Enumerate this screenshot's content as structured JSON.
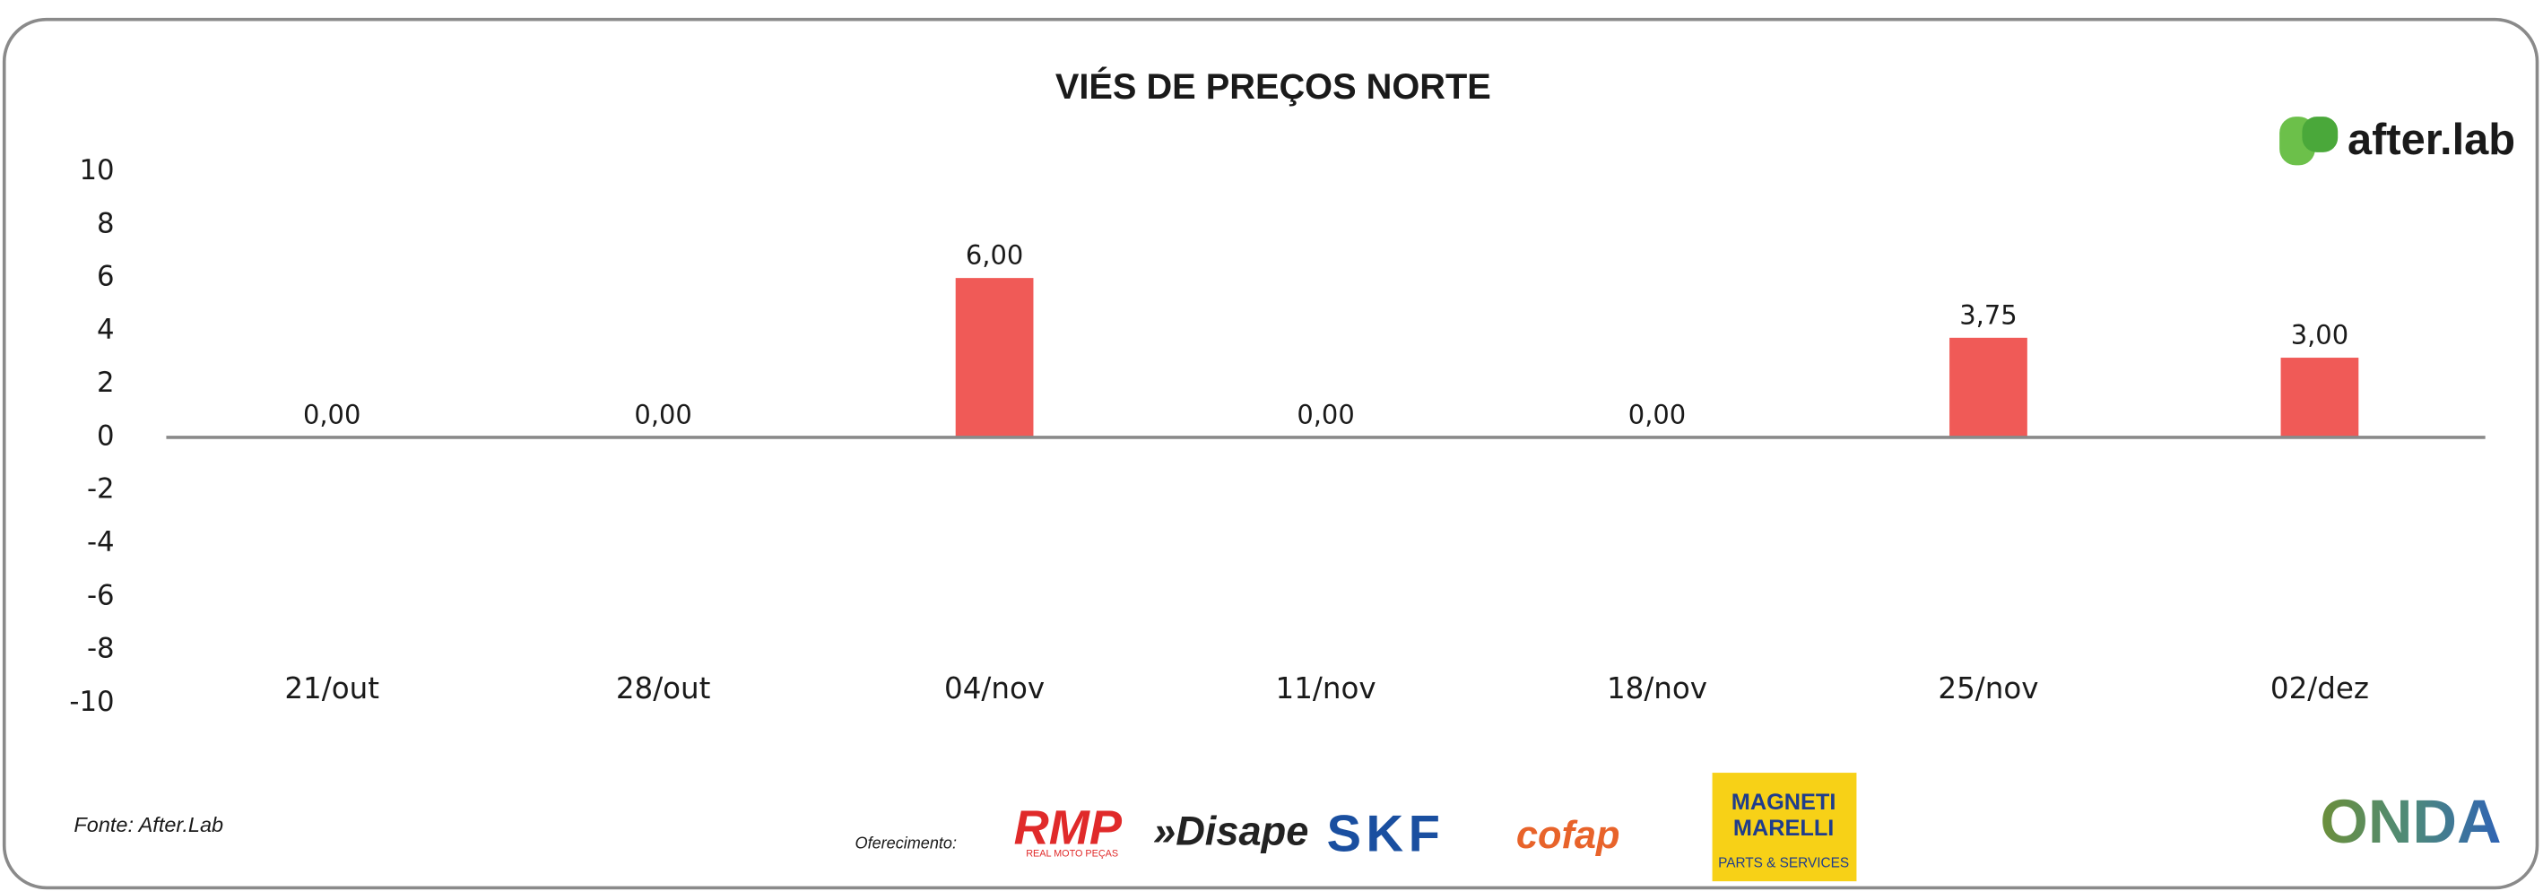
{
  "chart_data": {
    "type": "bar",
    "title": "VIÉS DE PREÇOS NORTE",
    "categories": [
      "21/out",
      "28/out",
      "04/nov",
      "11/nov",
      "18/nov",
      "25/nov",
      "02/dez"
    ],
    "values": [
      0,
      0,
      6,
      0,
      0,
      3.75,
      3
    ],
    "value_labels": [
      "0,00",
      "0,00",
      "6,00",
      "0,00",
      "0,00",
      "3,75",
      "3,00"
    ],
    "color": "#f05a57",
    "ylim": [
      -10,
      10
    ],
    "yticks": [
      -10,
      -8,
      -6,
      -4,
      -2,
      0,
      2,
      4,
      6,
      8,
      10
    ],
    "grid": false
  },
  "source": "Fonte: After.Lab",
  "brand": "after.lab",
  "sponsor_label": "Oferecimento:",
  "sponsors": {
    "rmp": "RMP",
    "rmp_sub": "REAL MOTO PEÇAS",
    "disape": "»Disape",
    "skf": "SKF",
    "cofap": "cofap",
    "magneti_1": "MAGNETI",
    "magneti_2": "MARELLI",
    "magneti_sub": "PARTS & SERVICES"
  },
  "footer_logo": "ONDA"
}
